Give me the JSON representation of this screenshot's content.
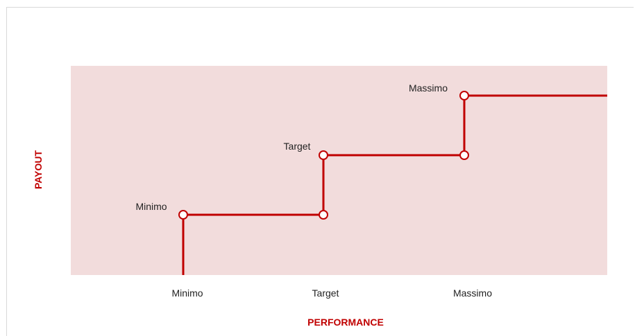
{
  "y_axis_title": "PAYOUT",
  "x_axis_title": "PERFORMANCE",
  "x_labels": [
    "Minimo",
    "Target",
    "Massimo"
  ],
  "point_labels": [
    "Minimo",
    "Target",
    "Massimo"
  ]
}
